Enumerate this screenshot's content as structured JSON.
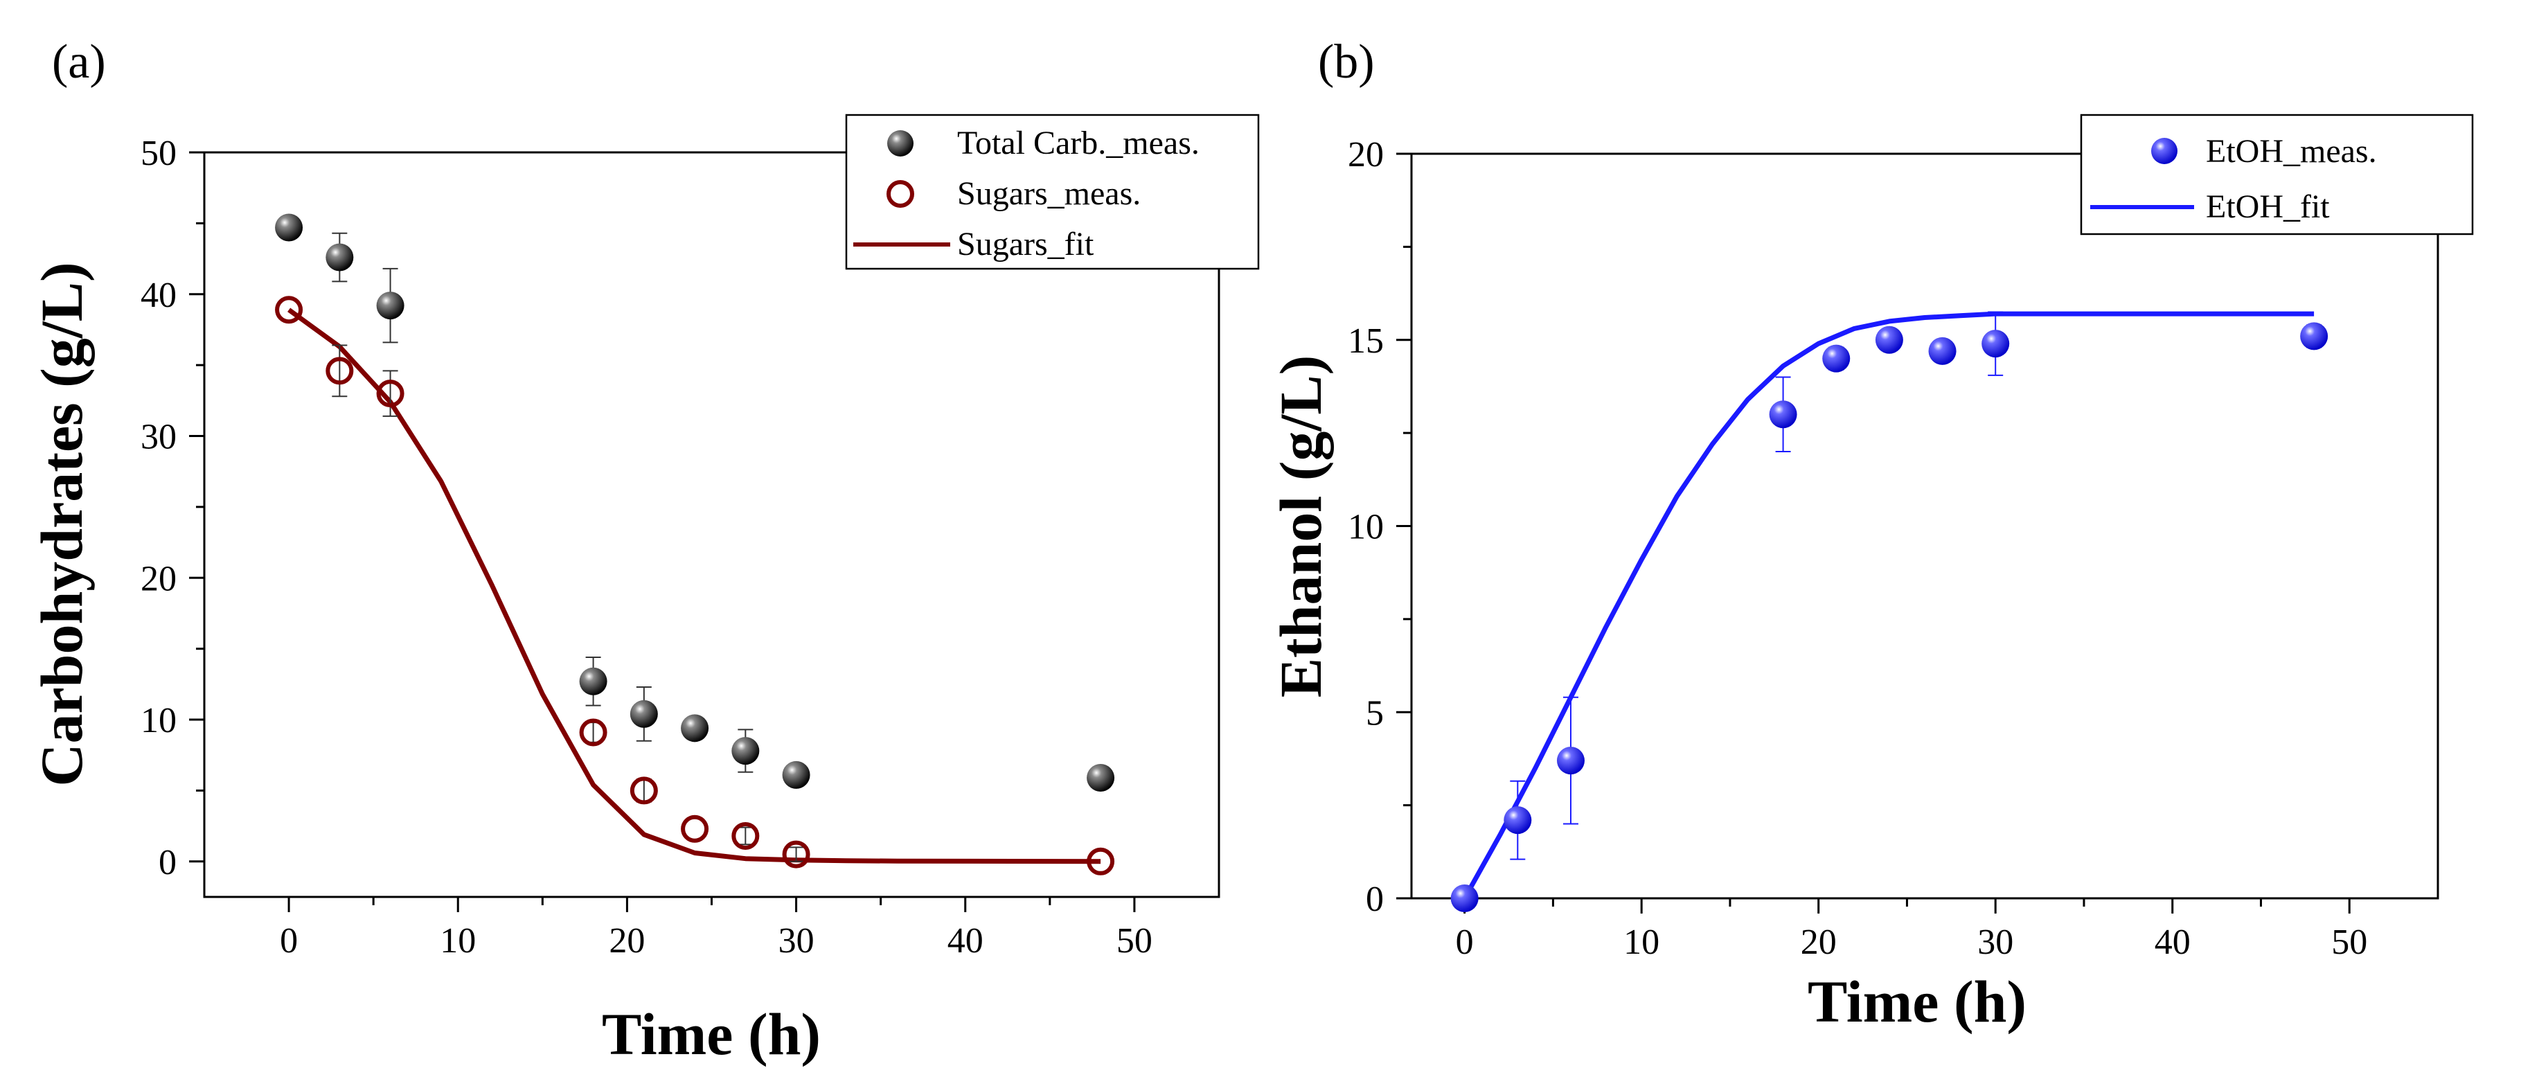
{
  "charts": {
    "a": {
      "panel_label": "(a)",
      "xlabel": "Time (h)",
      "ylabel": "Carbohydrates (g/L)",
      "legend": [
        "Total Carb._meas.",
        "Sugars_meas.",
        "Sugars_fit"
      ]
    },
    "b": {
      "panel_label": "(b)",
      "xlabel": "Time (h)",
      "ylabel": "Ethanol (g/L)",
      "legend": [
        "EtOH_meas.",
        "EtOH_fit"
      ]
    }
  },
  "colors": {
    "total_carb": "#111111",
    "sugars": "#800000",
    "ethanol": "#1a1aff"
  },
  "chart_data": [
    {
      "type": "scatter",
      "panel": "(a)",
      "xlabel": "Time (h)",
      "ylabel": "Carbohydrates (g/L)",
      "xlim": [
        -5,
        55
      ],
      "ylim": [
        -2.5,
        50
      ],
      "xticks": [
        0,
        10,
        20,
        30,
        40,
        50
      ],
      "yticks": [
        0,
        10,
        20,
        30,
        40,
        50
      ],
      "legend_position": "top-right",
      "series": [
        {
          "name": "Total Carb._meas.",
          "kind": "marker-filled",
          "color": "#111111",
          "x": [
            0,
            3,
            6,
            18,
            21,
            24,
            27,
            30,
            48
          ],
          "y": [
            44.7,
            42.6,
            39.2,
            12.7,
            10.4,
            9.4,
            7.8,
            6.1,
            5.9
          ],
          "err": [
            0,
            1.7,
            2.6,
            1.7,
            1.9,
            0,
            1.5,
            0.5,
            0
          ]
        },
        {
          "name": "Sugars_meas.",
          "kind": "marker-open",
          "color": "#800000",
          "x": [
            0,
            3,
            6,
            18,
            21,
            24,
            27,
            30,
            48
          ],
          "y": [
            38.9,
            34.6,
            33.0,
            9.1,
            5.0,
            2.3,
            1.8,
            0.5,
            0.0
          ],
          "err": [
            0,
            1.8,
            1.6,
            0.7,
            0.8,
            0,
            0.6,
            0.5,
            0
          ]
        },
        {
          "name": "Sugars_fit",
          "kind": "line",
          "color": "#800000",
          "x": [
            0,
            3,
            6,
            9,
            12,
            15,
            18,
            21,
            24,
            27,
            30,
            33,
            36,
            40,
            48
          ],
          "y": [
            38.9,
            36.3,
            32.4,
            26.8,
            19.5,
            11.8,
            5.4,
            1.9,
            0.6,
            0.2,
            0.1,
            0.05,
            0.03,
            0.02,
            0.0
          ]
        }
      ]
    },
    {
      "type": "scatter",
      "panel": "(b)",
      "xlabel": "Time (h)",
      "ylabel": "Ethanol (g/L)",
      "xlim": [
        -3,
        55
      ],
      "ylim": [
        0,
        20
      ],
      "xticks": [
        0,
        10,
        20,
        30,
        40,
        50
      ],
      "yticks": [
        0,
        5,
        10,
        15,
        20
      ],
      "legend_position": "top-right",
      "series": [
        {
          "name": "EtOH_meas.",
          "kind": "marker-sphere",
          "color": "#1a1aff",
          "x": [
            0,
            3,
            6,
            18,
            21,
            24,
            27,
            30,
            48
          ],
          "y": [
            0.0,
            2.1,
            3.7,
            13.0,
            14.5,
            15.0,
            14.7,
            14.9,
            15.1
          ],
          "err": [
            0,
            1.05,
            1.7,
            1.0,
            0.3,
            0.2,
            0.25,
            0.85,
            0.3
          ]
        },
        {
          "name": "EtOH_fit",
          "kind": "line",
          "color": "#1a1aff",
          "x": [
            0,
            2,
            4,
            6,
            8,
            10,
            12,
            14,
            16,
            18,
            20,
            22,
            24,
            26,
            28,
            30,
            35,
            40,
            48
          ],
          "y": [
            0.0,
            1.7,
            3.5,
            5.4,
            7.3,
            9.1,
            10.8,
            12.2,
            13.4,
            14.3,
            14.9,
            15.3,
            15.5,
            15.6,
            15.65,
            15.7,
            15.7,
            15.7,
            15.7
          ]
        }
      ]
    }
  ]
}
